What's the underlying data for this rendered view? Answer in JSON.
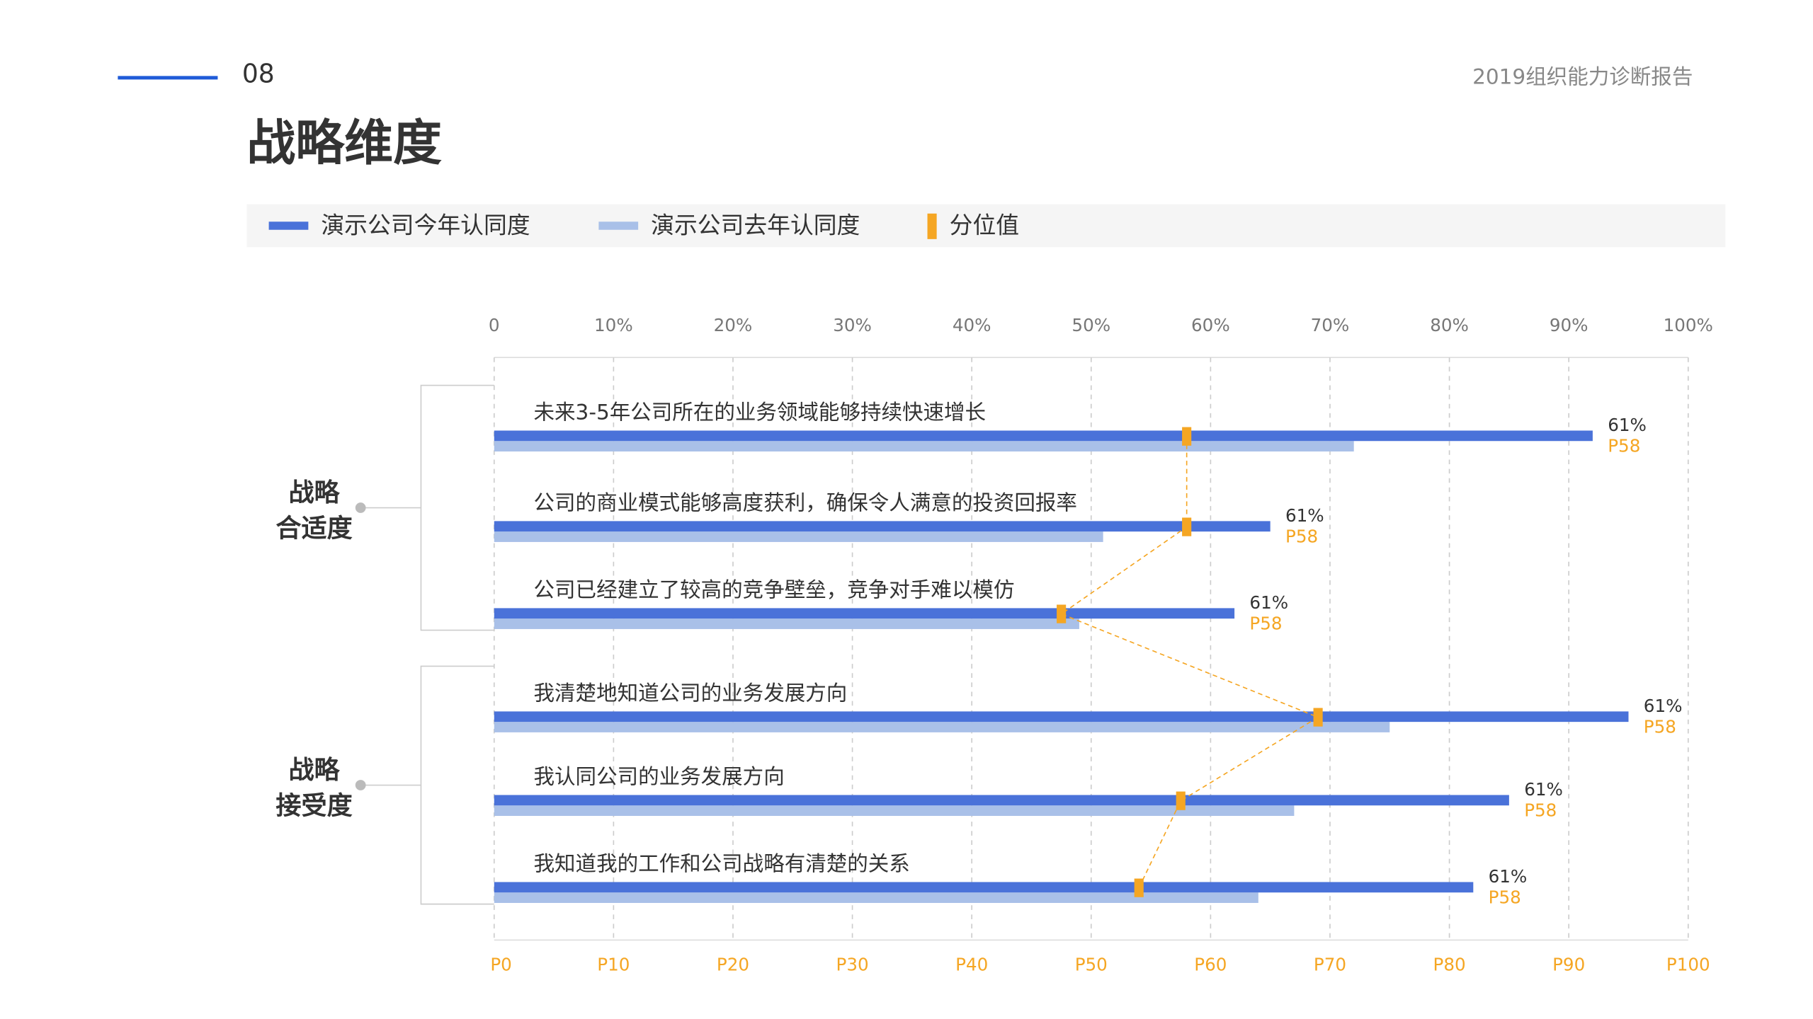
{
  "header": {
    "page_number": "08",
    "report_title": "2019组织能力诊断报告",
    "title": "战略维度"
  },
  "chart_data": {
    "type": "bar",
    "orientation": "horizontal",
    "categories": [
      "未来3-5年公司所在的业务领域能够持续快速增长",
      "公司的商业模式能够高度获利，确保令人满意的投资回报率",
      "公司已经建立了较高的竞争壁垒，竞争对手难以模仿",
      "我清楚地知道公司的业务发展方向",
      "我认同公司的业务发展方向",
      "我知道我的工作和公司战略有清楚的关系"
    ],
    "groups": [
      {
        "lines": [
          "战略",
          "合适度"
        ],
        "start": 0,
        "end": 2
      },
      {
        "lines": [
          "战略",
          "接受度"
        ],
        "start": 3,
        "end": 5
      }
    ],
    "series": [
      {
        "name": "演示公司今年认同度",
        "color": "#4a72d9",
        "values": [
          92,
          65,
          62,
          95,
          85,
          82
        ]
      },
      {
        "name": "演示公司去年认同度",
        "color": "#a9c0e8",
        "values": [
          72,
          51,
          49,
          75,
          67,
          64
        ]
      },
      {
        "name": "分位值",
        "color": "#f5a623",
        "values": [
          58,
          58,
          47.5,
          69,
          57.5,
          54
        ]
      }
    ],
    "annotations": [
      {
        "score": "61%",
        "percentile": "P58"
      },
      {
        "score": "61%",
        "percentile": "P58"
      },
      {
        "score": "61%",
        "percentile": "P58"
      },
      {
        "score": "61%",
        "percentile": "P58"
      },
      {
        "score": "61%",
        "percentile": "P58"
      },
      {
        "score": "61%",
        "percentile": "P58"
      }
    ],
    "xlim": [
      0,
      100
    ],
    "xticks": [
      0,
      {
        "value": 10,
        "label": "10%"
      },
      {
        "value": 20,
        "label": "20%"
      },
      {
        "value": 30,
        "label": "30%"
      },
      {
        "value": 40,
        "label": "40%"
      },
      {
        "value": 50,
        "label": "50%"
      },
      {
        "value": 60,
        "label": "60%"
      },
      {
        "value": 70,
        "label": "70%"
      },
      {
        "value": 80,
        "label": "80%"
      },
      {
        "value": 90,
        "label": "90%"
      },
      {
        "value": 100,
        "label": "100%"
      }
    ],
    "x2ticks": [
      {
        "value": 0,
        "label": "P0"
      },
      {
        "value": 10,
        "label": "P10"
      },
      {
        "value": 20,
        "label": "P20"
      },
      {
        "value": 30,
        "label": "P30"
      },
      {
        "value": 40,
        "label": "P40"
      },
      {
        "value": 50,
        "label": "P50"
      },
      {
        "value": 60,
        "label": "P60"
      },
      {
        "value": 70,
        "label": "P70"
      },
      {
        "value": 80,
        "label": "P80"
      },
      {
        "value": 90,
        "label": "P90"
      },
      {
        "value": 100,
        "label": "P100"
      }
    ],
    "grid": true,
    "legend": "top"
  }
}
